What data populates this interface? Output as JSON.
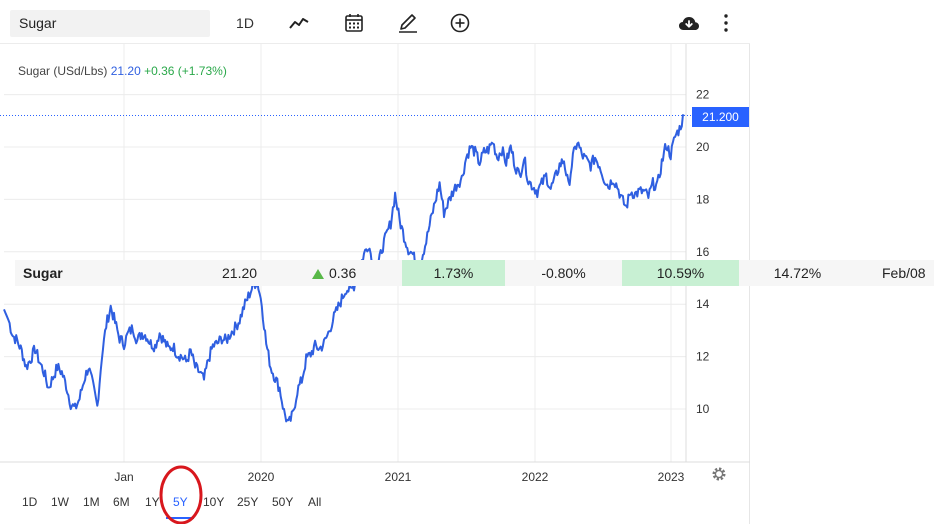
{
  "toolbar": {
    "symbol": "Sugar",
    "interval_label": "1D",
    "icons": [
      "line-chart-icon",
      "calendar-icon",
      "draw-pencil-icon",
      "add-circle-icon",
      "cloud-download-icon",
      "more-vertical-icon"
    ]
  },
  "legend": {
    "name": "Sugar (USd/Lbs)",
    "value": "21.20",
    "change": "+0.36 (+1.73%)"
  },
  "price_badge": "21.200",
  "colors": {
    "line": "#2f5fe0",
    "accent": "#2962ff",
    "positive": "#2aa84a",
    "positive_bg": "#c8f0d3",
    "annotation": "#d8171d"
  },
  "chart_data": {
    "type": "line",
    "x_ticks": [
      "Jan",
      "2020",
      "2021",
      "2022",
      "2023"
    ],
    "y_ticks": [
      "10",
      "12",
      "14",
      "16",
      "18",
      "20",
      "22"
    ],
    "ylim": [
      8.0,
      23.0
    ],
    "last_value": 21.2,
    "grid": true,
    "series": [
      {
        "values": [
          13.8,
          13.4,
          12.8,
          12.6,
          12.2,
          11.6,
          11.9,
          12.3,
          11.8,
          11.4,
          10.8,
          11.2,
          11.6,
          11.4,
          10.9,
          10.2,
          10.0,
          10.4,
          11.1,
          11.6,
          10.9,
          10.1,
          12.0,
          13.2,
          13.9,
          13.3,
          12.7,
          12.5,
          12.9,
          13.1,
          12.6,
          12.9,
          12.8,
          12.5,
          12.4,
          12.9,
          12.6,
          12.3,
          12.4,
          12.1,
          12.0,
          11.8,
          12.2,
          11.6,
          11.4,
          11.1,
          11.9,
          12.4,
          12.5,
          12.7,
          12.6,
          12.9,
          13.1,
          13.4,
          13.9,
          14.3,
          14.7,
          14.9,
          14.0,
          12.5,
          11.6,
          11.2,
          10.8,
          9.9,
          9.4,
          9.8,
          10.7,
          11.1,
          11.9,
          12.1,
          12.4,
          12.3,
          12.5,
          12.9,
          13.4,
          13.8,
          14.2,
          14.6,
          14.5,
          14.8,
          15.4,
          15.9,
          16.3,
          15.6,
          15.3,
          16.1,
          16.6,
          17.1,
          18.2,
          17.2,
          16.6,
          16.1,
          15.9,
          15.4,
          15.8,
          16.4,
          17.2,
          17.9,
          18.6,
          17.5,
          17.9,
          18.3,
          18.6,
          18.8,
          19.6,
          20.0,
          19.8,
          19.4,
          19.8,
          19.9,
          20.2,
          19.6,
          19.9,
          19.4,
          20.0,
          19.3,
          18.9,
          19.6,
          18.7,
          18.5,
          18.3,
          18.6,
          18.9,
          18.4,
          18.8,
          19.3,
          19.5,
          18.5,
          19.6,
          20.2,
          19.7,
          19.5,
          19.3,
          19.6,
          19.3,
          18.8,
          18.5,
          18.8,
          18.5,
          18.0,
          17.7,
          18.3,
          18.2,
          18.3,
          18.3,
          18.1,
          18.6,
          18.5,
          19.4,
          20.1,
          19.7,
          20.4,
          20.7,
          21.2
        ]
      }
    ]
  },
  "quote_row": {
    "name": "Sugar",
    "price": "21.20",
    "change": "0.36",
    "pct_change": "1.73%",
    "weekly": "-0.80%",
    "monthly": "10.59%",
    "yearly": "14.72%",
    "date": "Feb/08"
  },
  "ranges": {
    "items": [
      "1D",
      "1W",
      "1M",
      "6M",
      "1Y",
      "5Y",
      "10Y",
      "25Y",
      "50Y",
      "All"
    ],
    "active": "5Y"
  }
}
